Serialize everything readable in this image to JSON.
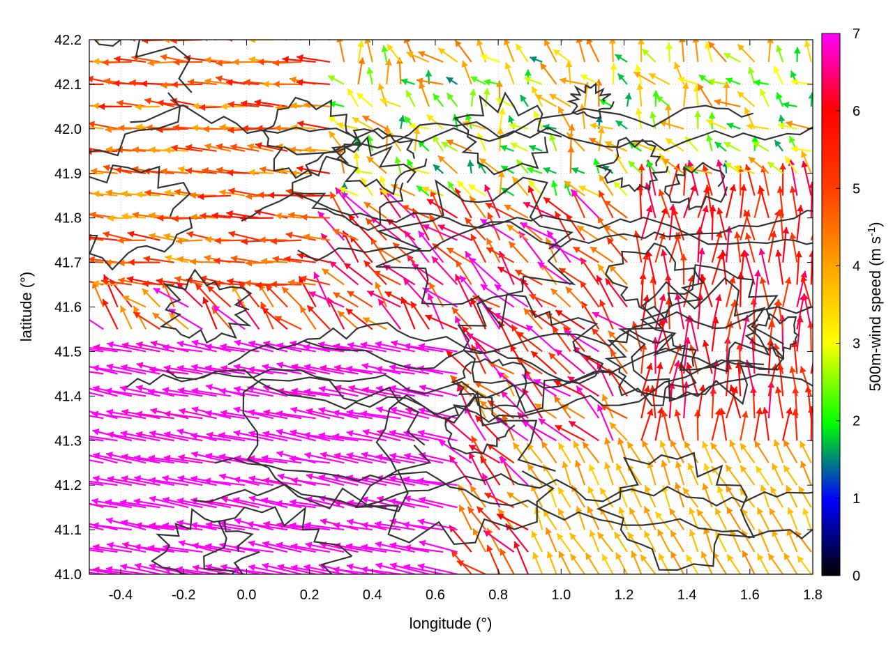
{
  "chart_data": {
    "type": "vector-field",
    "xlabel": "longitude (°)",
    "ylabel": "latitude (°)",
    "xlim": [
      -0.5,
      1.8
    ],
    "ylim": [
      41.0,
      42.2
    ],
    "xticks": [
      "-0.4",
      "-0.2",
      "0.0",
      "0.2",
      "0.4",
      "0.6",
      "0.8",
      "1.0",
      "1.2",
      "1.4",
      "1.6",
      "1.8"
    ],
    "xtick_values": [
      -0.4,
      -0.2,
      0.0,
      0.2,
      0.4,
      0.6,
      0.8,
      1.0,
      1.2,
      1.4,
      1.6,
      1.8
    ],
    "yticks": [
      "41.0",
      "41.1",
      "41.2",
      "41.3",
      "41.4",
      "41.5",
      "41.6",
      "41.7",
      "41.8",
      "41.9",
      "42.0",
      "42.1",
      "42.2"
    ],
    "ytick_values": [
      41.0,
      41.1,
      41.2,
      41.3,
      41.4,
      41.5,
      41.6,
      41.7,
      41.8,
      41.9,
      42.0,
      42.1,
      42.2
    ],
    "colorbar": {
      "label": "500m-wind speed (m s-1)",
      "label_main": "500m-wind speed (m s",
      "label_sup": "-1",
      "label_end": ")",
      "range": [
        0,
        7
      ],
      "ticks": [
        "0",
        "1",
        "2",
        "3",
        "4",
        "5",
        "6",
        "7"
      ],
      "tick_values": [
        0,
        1,
        2,
        3,
        4,
        5,
        6,
        7
      ],
      "colors": [
        "#000000",
        "#0000ff",
        "#00ff00",
        "#ffff00",
        "#ffa500",
        "#ff4000",
        "#ff0000",
        "#ff00ff"
      ]
    },
    "grid": "dotted",
    "contour_color": "#333333",
    "wind_regions": [
      {
        "region": "south-west",
        "lon": [
          -0.5,
          0.7
        ],
        "lat": [
          41.0,
          41.5
        ],
        "speed": 7,
        "direction": "west-north-west"
      },
      {
        "region": "north-west",
        "lon": [
          -0.5,
          0.3
        ],
        "lat": [
          41.6,
          42.2
        ],
        "speed": 4.5,
        "direction": "west"
      },
      {
        "region": "north-centre",
        "lon": [
          0.3,
          1.2
        ],
        "lat": [
          41.8,
          42.2
        ],
        "speed": 3,
        "direction": "north-west"
      },
      {
        "region": "east",
        "lon": [
          1.2,
          1.8
        ],
        "lat": [
          41.3,
          41.8
        ],
        "speed": 5.5,
        "direction": "north"
      },
      {
        "region": "south-east",
        "lon": [
          0.9,
          1.8
        ],
        "lat": [
          41.0,
          41.25
        ],
        "speed": 3.8,
        "direction": "north-west"
      }
    ]
  }
}
